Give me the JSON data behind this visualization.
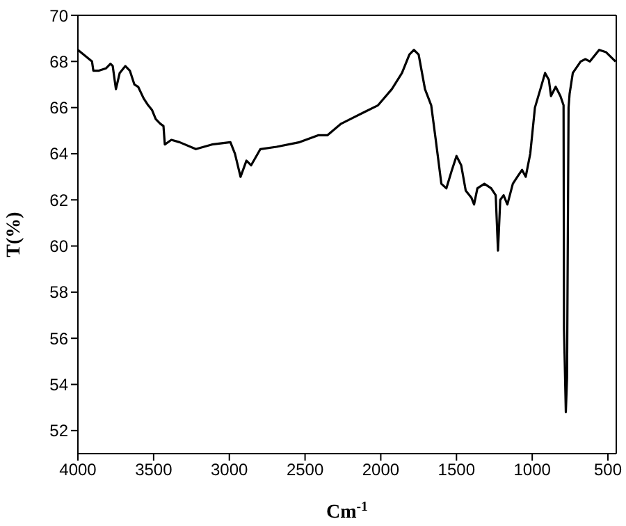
{
  "chart_data": {
    "type": "line",
    "xlabel": "Cm$^{-1}$",
    "ylabel": "T(%)",
    "xlim": [
      4000,
      445
    ],
    "xticks": [
      4000,
      3500,
      3000,
      2500,
      2000,
      1500,
      1000,
      500
    ],
    "ylim": [
      51,
      70
    ],
    "yticks": [
      52,
      54,
      56,
      58,
      60,
      62,
      64,
      66,
      68,
      70
    ],
    "marker": "none",
    "line_style": "solid",
    "x": [
      4000,
      3907,
      3898,
      3861,
      3815,
      3785,
      3770,
      3749,
      3724,
      3687,
      3657,
      3627,
      3602,
      3566,
      3536,
      3511,
      3486,
      3456,
      3435,
      3426,
      3383,
      3329,
      3221,
      3115,
      2993,
      2963,
      2926,
      2887,
      2856,
      2795,
      2688,
      2536,
      2414,
      2353,
      2262,
      2110,
      2018,
      1927,
      1860,
      1811,
      1781,
      1750,
      1708,
      1667,
      1637,
      1600,
      1567,
      1530,
      1500,
      1469,
      1439,
      1402,
      1384,
      1362,
      1316,
      1271,
      1241,
      1226,
      1211,
      1189,
      1164,
      1128,
      1088,
      1067,
      1043,
      1013,
      982,
      946,
      915,
      890,
      876,
      845,
      814,
      793,
      790,
      778,
      770,
      760,
      753,
      732,
      680,
      649,
      619,
      558,
      512,
      450
    ],
    "series": [
      {
        "color": "#000000",
        "values": [
          68.5,
          68.0,
          67.6,
          67.6,
          67.7,
          67.9,
          67.8,
          66.8,
          67.5,
          67.8,
          67.6,
          67.0,
          66.9,
          66.4,
          66.1,
          65.9,
          65.5,
          65.3,
          65.2,
          64.4,
          64.6,
          64.5,
          64.2,
          64.4,
          64.5,
          64.0,
          63.0,
          63.7,
          63.5,
          64.2,
          64.3,
          64.5,
          64.8,
          64.8,
          65.3,
          65.8,
          66.1,
          66.8,
          67.5,
          68.3,
          68.5,
          68.3,
          66.8,
          66.1,
          64.6,
          62.7,
          62.5,
          63.3,
          63.9,
          63.5,
          62.4,
          62.1,
          61.8,
          62.5,
          62.7,
          62.5,
          62.2,
          59.8,
          62.0,
          62.2,
          61.8,
          62.7,
          63.1,
          63.3,
          63.0,
          64.0,
          66.0,
          66.8,
          67.5,
          67.2,
          66.5,
          66.9,
          66.5,
          66.1,
          56.4,
          52.8,
          54.3,
          66.0,
          66.6,
          67.5,
          68.0,
          68.1,
          68.0,
          68.5,
          68.4,
          68.0
        ]
      }
    ]
  }
}
